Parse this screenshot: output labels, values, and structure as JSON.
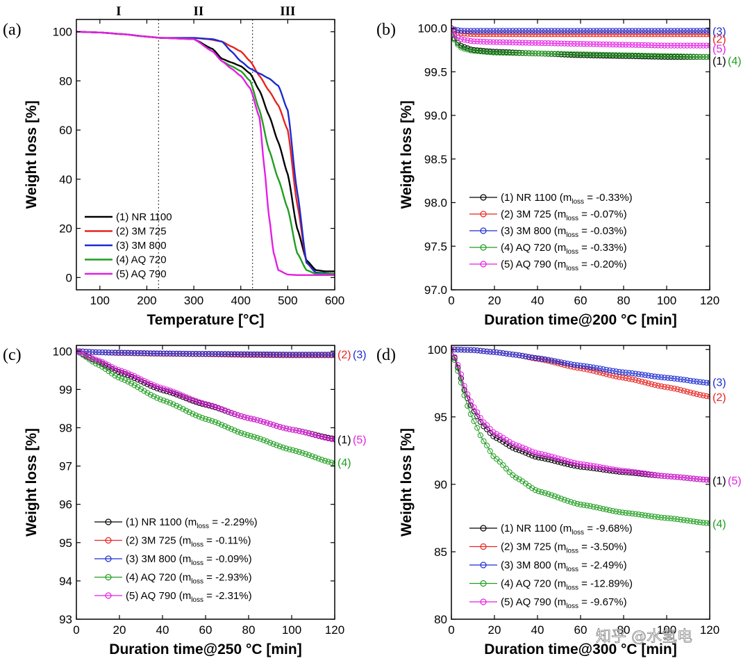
{
  "colors": {
    "s1": "#000000",
    "s2": "#e8231f",
    "s3": "#1c2bd1",
    "s4": "#1f9e1f",
    "s5": "#e41ee4"
  },
  "watermark": "知乎 @水氢电",
  "chart_data": [
    {
      "id": "a",
      "panel_label": "(a)",
      "type": "line",
      "xlabel": "Temperature [°C]",
      "ylabel": "Weight loss [%]",
      "xlim": [
        50,
        600
      ],
      "ylim": [
        -5,
        105
      ],
      "xticks": [
        100,
        200,
        300,
        400,
        500,
        600
      ],
      "yticks": [
        0,
        20,
        40,
        60,
        80,
        100
      ],
      "regions": [
        "I",
        "II",
        "III"
      ],
      "region_x": [
        140,
        310,
        500
      ],
      "dividers": [
        225,
        425
      ],
      "legend_position": "lower-left",
      "series": [
        {
          "name": "(1) NR 1100",
          "color_key": "s1",
          "x": [
            50,
            100,
            150,
            200,
            230,
            300,
            340,
            360,
            380,
            400,
            420,
            440,
            460,
            480,
            500,
            520,
            540,
            560,
            580,
            600
          ],
          "y": [
            100,
            99.7,
            99,
            98,
            97.5,
            97,
            93,
            89,
            87.5,
            86,
            83,
            76,
            66,
            55,
            42,
            20,
            7,
            3,
            2.5,
            2.5
          ]
        },
        {
          "name": "(2) 3M 725",
          "color_key": "s2",
          "x": [
            50,
            100,
            150,
            200,
            230,
            300,
            330,
            360,
            380,
            400,
            420,
            440,
            460,
            480,
            500,
            520,
            540,
            560,
            600
          ],
          "y": [
            100,
            99.7,
            99,
            98,
            97.5,
            97.5,
            97,
            96,
            94,
            92,
            88,
            82,
            76,
            70,
            60,
            30,
            6,
            2,
            1.5
          ]
        },
        {
          "name": "(3) 3M 800",
          "color_key": "s3",
          "x": [
            50,
            100,
            150,
            200,
            230,
            300,
            340,
            360,
            380,
            400,
            420,
            440,
            460,
            480,
            500,
            520,
            540,
            560,
            600
          ],
          "y": [
            100,
            99.7,
            99,
            98,
            97.5,
            97.5,
            97,
            96,
            92,
            88,
            85,
            83,
            81,
            78,
            68,
            35,
            6,
            2,
            1.5
          ]
        },
        {
          "name": "(4) AQ 720",
          "color_key": "s4",
          "x": [
            50,
            100,
            150,
            200,
            230,
            300,
            340,
            360,
            380,
            400,
            420,
            440,
            460,
            480,
            500,
            520,
            540,
            560,
            600
          ],
          "y": [
            100,
            99.7,
            99,
            98,
            97.5,
            97,
            92,
            88,
            86,
            84,
            80,
            68,
            52,
            40,
            28,
            10,
            3,
            1.5,
            1.5
          ]
        },
        {
          "name": "(5) AQ 790",
          "color_key": "s5",
          "x": [
            50,
            100,
            150,
            200,
            230,
            300,
            340,
            360,
            380,
            400,
            420,
            440,
            450,
            460,
            470,
            480,
            500,
            520,
            600
          ],
          "y": [
            100,
            99.7,
            99,
            98,
            97.5,
            97,
            92,
            88,
            85,
            82,
            77,
            65,
            45,
            25,
            10,
            3,
            1.2,
            1,
            1
          ]
        }
      ]
    },
    {
      "id": "b",
      "panel_label": "(b)",
      "type": "line",
      "xlabel": "Duration time@200 °C [min]",
      "ylabel": "Weight loss [%]",
      "xlim": [
        0,
        120
      ],
      "ylim": [
        97.0,
        100.1
      ],
      "xticks": [
        0,
        20,
        40,
        60,
        80,
        100,
        120
      ],
      "yticks": [
        97.0,
        97.5,
        98.0,
        98.5,
        99.0,
        99.5,
        100.0
      ],
      "legend_position": "lower-center",
      "series": [
        {
          "name": "(1) NR 1100",
          "loss": "-0.33%",
          "color_key": "s1",
          "x": [
            0,
            2,
            5,
            10,
            20,
            40,
            60,
            80,
            100,
            120
          ],
          "y": [
            100,
            99.85,
            99.79,
            99.75,
            99.73,
            99.71,
            99.69,
            99.68,
            99.67,
            99.67
          ]
        },
        {
          "name": "(2) 3M 725",
          "loss": "-0.07%",
          "color_key": "s2",
          "x": [
            0,
            2,
            5,
            10,
            20,
            40,
            60,
            80,
            100,
            120
          ],
          "y": [
            100,
            99.95,
            99.94,
            99.93,
            99.93,
            99.93,
            99.93,
            99.93,
            99.93,
            99.93
          ]
        },
        {
          "name": "(3) 3M 800",
          "loss": "-0.03%",
          "color_key": "s3",
          "x": [
            0,
            2,
            5,
            10,
            20,
            40,
            60,
            80,
            100,
            120
          ],
          "y": [
            100,
            99.98,
            99.97,
            99.97,
            99.97,
            99.97,
            99.97,
            99.97,
            99.97,
            99.97
          ]
        },
        {
          "name": "(4) AQ 720",
          "loss": "-0.33%",
          "color_key": "s4",
          "x": [
            0,
            2,
            5,
            10,
            20,
            40,
            60,
            80,
            100,
            120
          ],
          "y": [
            100,
            99.83,
            99.77,
            99.74,
            99.72,
            99.71,
            99.7,
            99.69,
            99.68,
            99.67
          ]
        },
        {
          "name": "(5) AQ 790",
          "loss": "-0.20%",
          "color_key": "s5",
          "x": [
            0,
            2,
            5,
            10,
            20,
            40,
            60,
            80,
            100,
            120
          ],
          "y": [
            100,
            99.9,
            99.87,
            99.85,
            99.84,
            99.83,
            99.82,
            99.81,
            99.8,
            99.8
          ]
        }
      ],
      "end_labels": [
        {
          "text": "(3)",
          "color_key": "s3",
          "y": 99.97
        },
        {
          "text": "(2)",
          "color_key": "s2",
          "y": 99.88
        },
        {
          "text": "(5)",
          "color_key": "s5",
          "y": 99.77
        },
        {
          "text": "(1)",
          "color_key": "s1",
          "y": 99.63
        },
        {
          "text": "(4)",
          "color_key": "s4",
          "y": 99.63,
          "after": "(1)"
        }
      ]
    },
    {
      "id": "c",
      "panel_label": "(c)",
      "type": "line",
      "xlabel": "Duration time@250 °C [min]",
      "ylabel": "Weight loss [%]",
      "xlim": [
        0,
        120
      ],
      "ylim": [
        93,
        100.15
      ],
      "xticks": [
        0,
        20,
        40,
        60,
        80,
        100,
        120
      ],
      "yticks": [
        93,
        94,
        95,
        96,
        97,
        98,
        99,
        100
      ],
      "legend_position": "lower-left",
      "series": [
        {
          "name": "(1) NR 1100",
          "loss": "-2.29%",
          "color_key": "s1",
          "x": [
            0,
            10,
            20,
            40,
            60,
            80,
            100,
            120
          ],
          "y": [
            100,
            99.72,
            99.45,
            98.98,
            98.6,
            98.25,
            97.95,
            97.71
          ]
        },
        {
          "name": "(2) 3M 725",
          "loss": "-0.11%",
          "color_key": "s2",
          "x": [
            0,
            10,
            20,
            40,
            60,
            80,
            100,
            120
          ],
          "y": [
            100,
            99.97,
            99.95,
            99.93,
            99.92,
            99.9,
            99.89,
            99.89
          ]
        },
        {
          "name": "(3) 3M 800",
          "loss": "-0.09%",
          "color_key": "s3",
          "x": [
            0,
            10,
            20,
            40,
            60,
            80,
            100,
            120
          ],
          "y": [
            100,
            99.97,
            99.96,
            99.94,
            99.93,
            99.92,
            99.91,
            99.91
          ]
        },
        {
          "name": "(4) AQ 720",
          "loss": "-2.93%",
          "color_key": "s4",
          "x": [
            0,
            10,
            20,
            40,
            60,
            80,
            100,
            120
          ],
          "y": [
            100,
            99.65,
            99.3,
            98.72,
            98.23,
            97.8,
            97.42,
            97.07
          ]
        },
        {
          "name": "(5) AQ 790",
          "loss": "-2.31%",
          "color_key": "s5",
          "x": [
            0,
            10,
            20,
            40,
            60,
            80,
            100,
            120
          ],
          "y": [
            100,
            99.76,
            99.5,
            99.03,
            98.62,
            98.25,
            97.95,
            97.69
          ]
        }
      ],
      "end_labels": [
        {
          "text": "(2)",
          "color_key": "s2",
          "y": 99.92
        },
        {
          "text": "(3)",
          "color_key": "s3",
          "y": 99.92,
          "after": "(2)"
        },
        {
          "text": "(1)",
          "color_key": "s1",
          "y": 97.7
        },
        {
          "text": "(5)",
          "color_key": "s5",
          "y": 97.7,
          "after": "(1)"
        },
        {
          "text": "(4)",
          "color_key": "s4",
          "y": 97.1
        }
      ]
    },
    {
      "id": "d",
      "panel_label": "(d)",
      "type": "line",
      "xlabel": "Duration time@300 °C [min]",
      "ylabel": "Weight loss [%]",
      "xlim": [
        0,
        120
      ],
      "ylim": [
        80,
        100.3
      ],
      "xticks": [
        0,
        20,
        40,
        60,
        80,
        100,
        120
      ],
      "yticks": [
        80,
        85,
        90,
        95,
        100
      ],
      "legend_position": "lower-left",
      "series": [
        {
          "name": "(1) NR 1100",
          "loss": "-9.68%",
          "color_key": "s1",
          "x": [
            0,
            2,
            4,
            6,
            8,
            10,
            15,
            20,
            30,
            40,
            60,
            80,
            100,
            120
          ],
          "y": [
            100,
            99.2,
            98.1,
            97,
            96.2,
            95.5,
            94.3,
            93.5,
            92.6,
            92,
            91.3,
            90.9,
            90.6,
            90.32
          ]
        },
        {
          "name": "(2) 3M 725",
          "loss": "-3.50%",
          "color_key": "s2",
          "x": [
            0,
            10,
            20,
            30,
            40,
            60,
            80,
            100,
            120
          ],
          "y": [
            100,
            99.95,
            99.8,
            99.6,
            99.3,
            98.6,
            97.9,
            97.2,
            96.5
          ]
        },
        {
          "name": "(3) 3M 800",
          "loss": "-2.49%",
          "color_key": "s3",
          "x": [
            0,
            10,
            20,
            30,
            40,
            60,
            80,
            100,
            120
          ],
          "y": [
            100,
            99.95,
            99.8,
            99.6,
            99.35,
            98.8,
            98.3,
            97.9,
            97.51
          ]
        },
        {
          "name": "(4) AQ 720",
          "loss": "-12.89%",
          "color_key": "s4",
          "x": [
            0,
            2,
            4,
            6,
            8,
            10,
            15,
            20,
            30,
            40,
            60,
            80,
            100,
            120
          ],
          "y": [
            100,
            99,
            97.8,
            96.6,
            95.6,
            94.8,
            93.2,
            92,
            90.5,
            89.5,
            88.5,
            87.9,
            87.5,
            87.11
          ]
        },
        {
          "name": "(5) AQ 790",
          "loss": "-9.67%",
          "color_key": "s5",
          "x": [
            0,
            2,
            4,
            6,
            8,
            10,
            15,
            20,
            30,
            40,
            60,
            80,
            100,
            120
          ],
          "y": [
            100,
            99.3,
            98.4,
            97.3,
            96.5,
            95.8,
            94.6,
            93.8,
            92.9,
            92.3,
            91.5,
            91,
            90.6,
            90.33
          ]
        }
      ],
      "end_labels": [
        {
          "text": "(3)",
          "color_key": "s3",
          "y": 97.6
        },
        {
          "text": "(2)",
          "color_key": "s2",
          "y": 96.5
        },
        {
          "text": "(1)",
          "color_key": "s1",
          "y": 90.3
        },
        {
          "text": "(5)",
          "color_key": "s5",
          "y": 90.3,
          "after": "(1)"
        },
        {
          "text": "(4)",
          "color_key": "s4",
          "y": 87.1
        }
      ]
    }
  ]
}
